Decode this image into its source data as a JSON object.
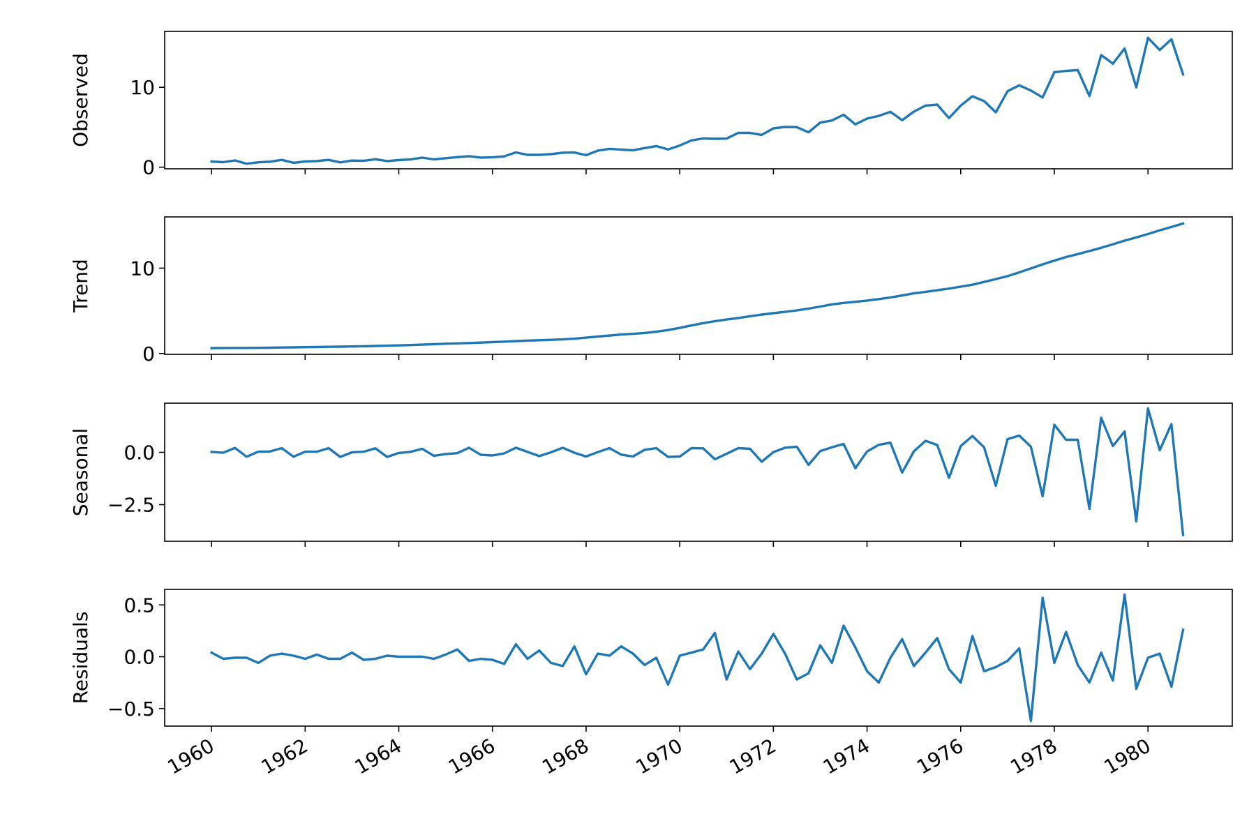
{
  "chart_data": {
    "type": "line",
    "x_ticks": [
      "1960",
      "1962",
      "1964",
      "1966",
      "1968",
      "1970",
      "1972",
      "1974",
      "1976",
      "1978",
      "1980"
    ],
    "x_range": [
      1959,
      1981.8
    ],
    "x_start": 1960.0,
    "x_step": 0.25,
    "line_color": "#1f77b4",
    "grid": false,
    "panels": [
      {
        "name": "observed",
        "ylabel": "Observed",
        "ylim": [
          -0.2,
          17.0
        ],
        "yticks": [
          {
            "value": 0,
            "label": "0"
          },
          {
            "value": 10,
            "label": "10"
          }
        ],
        "values": [
          0.71,
          0.63,
          0.85,
          0.44,
          0.61,
          0.69,
          0.92,
          0.55,
          0.72,
          0.77,
          0.92,
          0.6,
          0.83,
          0.8,
          1.0,
          0.77,
          0.89,
          0.97,
          1.2,
          0.98,
          1.13,
          1.26,
          1.38,
          1.21,
          1.23,
          1.35,
          1.85,
          1.55,
          1.55,
          1.64,
          1.82,
          1.84,
          1.5,
          2.07,
          2.3,
          2.2,
          2.12,
          2.39,
          2.65,
          2.22,
          2.72,
          3.35,
          3.6,
          3.55,
          3.58,
          4.3,
          4.3,
          4.04,
          4.86,
          5.04,
          5.01,
          4.37,
          5.58,
          5.85,
          6.57,
          5.36,
          6.09,
          6.43,
          6.93,
          5.88,
          6.96,
          7.71,
          7.83,
          6.15,
          7.71,
          8.88,
          8.28,
          6.87,
          9.51,
          10.25,
          9.6,
          8.73,
          11.88,
          12.06,
          12.15,
          8.91,
          14.04,
          12.96,
          14.85,
          9.99,
          16.2,
          14.67,
          16.02,
          11.61
        ]
      },
      {
        "name": "trend",
        "ylabel": "Trend",
        "ylim": [
          -0.1,
          16.0
        ],
        "yticks": [
          {
            "value": 0,
            "label": "0"
          },
          {
            "value": 10,
            "label": "10"
          }
        ],
        "values": [
          0.63,
          0.64,
          0.65,
          0.65,
          0.66,
          0.68,
          0.7,
          0.72,
          0.74,
          0.76,
          0.78,
          0.8,
          0.82,
          0.85,
          0.88,
          0.91,
          0.95,
          0.99,
          1.04,
          1.09,
          1.14,
          1.18,
          1.22,
          1.27,
          1.33,
          1.39,
          1.45,
          1.51,
          1.55,
          1.6,
          1.65,
          1.73,
          1.85,
          1.98,
          2.1,
          2.22,
          2.3,
          2.4,
          2.55,
          2.74,
          3.0,
          3.28,
          3.55,
          3.78,
          3.98,
          4.16,
          4.36,
          4.56,
          4.72,
          4.88,
          5.05,
          5.25,
          5.5,
          5.75,
          5.92,
          6.05,
          6.2,
          6.37,
          6.56,
          6.8,
          7.04,
          7.22,
          7.41,
          7.6,
          7.83,
          8.06,
          8.38,
          8.72,
          9.06,
          9.5,
          9.96,
          10.44,
          10.88,
          11.3,
          11.64,
          12.0,
          12.38,
          12.8,
          13.22,
          13.6,
          14.0,
          14.42,
          14.82,
          15.22
        ]
      },
      {
        "name": "seasonal",
        "ylabel": "Seasonal",
        "ylim": [
          -4.25,
          2.35
        ],
        "yticks": [
          {
            "value": 0.0,
            "label": "0.0"
          },
          {
            "value": -2.5,
            "label": "−2.5"
          }
        ],
        "values": [
          0.02,
          -0.02,
          0.21,
          -0.21,
          0.03,
          0.04,
          0.2,
          -0.21,
          0.03,
          0.03,
          0.2,
          -0.22,
          0.0,
          0.03,
          0.19,
          -0.22,
          -0.03,
          0.02,
          0.17,
          -0.17,
          -0.08,
          -0.04,
          0.22,
          -0.12,
          -0.15,
          -0.05,
          0.22,
          0.02,
          -0.18,
          0.0,
          0.22,
          -0.02,
          -0.2,
          0.01,
          0.2,
          -0.11,
          -0.2,
          0.12,
          0.2,
          -0.22,
          -0.2,
          0.2,
          0.19,
          -0.33,
          -0.07,
          0.2,
          0.17,
          -0.45,
          0.01,
          0.22,
          0.27,
          -0.6,
          0.06,
          0.24,
          0.4,
          -0.76,
          0.04,
          0.36,
          0.46,
          -0.97,
          0.05,
          0.55,
          0.35,
          -1.22,
          0.3,
          0.78,
          0.24,
          -1.6,
          0.63,
          0.8,
          0.27,
          -2.1,
          1.32,
          0.6,
          0.6,
          -2.7,
          1.65,
          0.3,
          1.0,
          -3.3,
          2.1,
          0.1,
          1.35,
          -3.95
        ]
      },
      {
        "name": "residuals",
        "ylabel": "Residuals",
        "ylim": [
          -0.67,
          0.65
        ],
        "yticks": [
          {
            "value": 0.5,
            "label": "0.5"
          },
          {
            "value": 0.0,
            "label": "0.0"
          },
          {
            "value": -0.5,
            "label": "−0.5"
          }
        ],
        "values": [
          0.04,
          -0.02,
          -0.01,
          -0.01,
          -0.06,
          0.01,
          0.03,
          0.01,
          -0.02,
          0.02,
          -0.02,
          -0.02,
          0.04,
          -0.03,
          -0.02,
          0.01,
          0.0,
          0.0,
          0.0,
          -0.02,
          0.02,
          0.07,
          -0.04,
          -0.02,
          -0.03,
          -0.07,
          0.12,
          -0.02,
          0.06,
          -0.06,
          -0.09,
          0.1,
          -0.17,
          0.03,
          0.01,
          0.1,
          0.03,
          -0.08,
          -0.01,
          -0.27,
          0.01,
          0.04,
          0.07,
          0.23,
          -0.22,
          0.05,
          -0.12,
          0.03,
          0.22,
          0.03,
          -0.22,
          -0.16,
          0.11,
          -0.06,
          0.3,
          0.09,
          -0.14,
          -0.25,
          -0.01,
          0.17,
          -0.09,
          0.04,
          0.18,
          -0.12,
          -0.25,
          0.2,
          -0.14,
          -0.1,
          -0.04,
          0.08,
          -0.62,
          0.57,
          -0.06,
          0.24,
          -0.08,
          -0.25,
          0.04,
          -0.23,
          0.6,
          -0.31,
          -0.01,
          0.03,
          -0.29,
          0.26
        ]
      }
    ]
  }
}
